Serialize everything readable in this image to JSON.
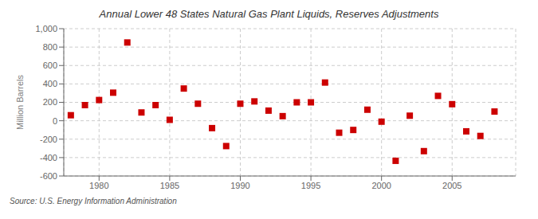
{
  "chart_data": {
    "type": "scatter",
    "title": "Annual Lower 48 States Natural Gas Plant Liquids, Reserves Adjustments",
    "y_label": "Million Barrels",
    "annotations": [
      "Source: U.S. Energy Information Administration"
    ],
    "x": [
      1978,
      1979,
      1980,
      1981,
      1982,
      1983,
      1984,
      1985,
      1986,
      1987,
      1988,
      1989,
      1990,
      1991,
      1992,
      1993,
      1994,
      1995,
      1996,
      1997,
      1998,
      1999,
      2000,
      2001,
      2002,
      2003,
      2004,
      2005,
      2006,
      2007,
      2008
    ],
    "values": [
      60,
      170,
      225,
      305,
      850,
      90,
      170,
      10,
      350,
      185,
      -80,
      -275,
      185,
      210,
      110,
      50,
      200,
      200,
      415,
      -130,
      -100,
      120,
      -10,
      -435,
      55,
      -330,
      270,
      180,
      -115,
      -165,
      100
    ],
    "color": "#cc0000",
    "marker": "square",
    "xlim": [
      1977.5,
      2009.5
    ],
    "xticks": [
      1980,
      1985,
      1990,
      1995,
      2000,
      2005
    ],
    "ylim": [
      -600,
      1000
    ],
    "yticks": [
      -600,
      -400,
      -200,
      0,
      200,
      400,
      600,
      800,
      {
        "value": 1000,
        "label": "1,000"
      }
    ],
    "grid": true
  }
}
